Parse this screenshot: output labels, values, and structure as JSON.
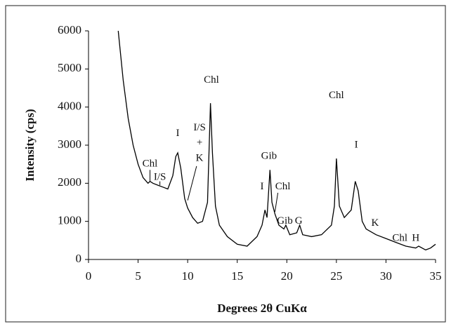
{
  "chart_data": {
    "type": "line",
    "x_label": "Degrees 2θ CuKα",
    "y_label": "Intensity (cps)",
    "xlim": [
      0,
      35
    ],
    "ylim": [
      0,
      6000
    ],
    "xticks": [
      0,
      5,
      10,
      15,
      20,
      25,
      30,
      35
    ],
    "yticks": [
      0,
      1000,
      2000,
      3000,
      4000,
      5000,
      6000
    ],
    "color": "#000000",
    "x": [
      3.0,
      3.5,
      4.0,
      4.5,
      5.0,
      5.5,
      6.0,
      6.2,
      6.5,
      7.0,
      7.5,
      8.0,
      8.5,
      8.8,
      9.0,
      9.3,
      9.7,
      10.0,
      10.5,
      11.0,
      11.5,
      12.0,
      12.3,
      12.5,
      12.8,
      13.2,
      14.0,
      15.0,
      16.0,
      17.0,
      17.5,
      17.8,
      18.0,
      18.3,
      18.5,
      18.8,
      19.2,
      19.7,
      19.9,
      20.3,
      21.0,
      21.3,
      21.6,
      22.5,
      23.5,
      24.5,
      24.8,
      25.0,
      25.3,
      25.8,
      26.5,
      26.9,
      27.2,
      27.6,
      28.0,
      29.0,
      30.0,
      31.0,
      32.0,
      33.0,
      33.3,
      34.0,
      34.5,
      35.0
    ],
    "values": [
      6000,
      4700,
      3700,
      3000,
      2500,
      2150,
      2000,
      2050,
      2000,
      1950,
      1900,
      1850,
      2200,
      2700,
      2800,
      2400,
      1600,
      1350,
      1100,
      950,
      1000,
      1500,
      4100,
      2800,
      1400,
      900,
      600,
      400,
      350,
      600,
      900,
      1300,
      1100,
      2350,
      1500,
      1200,
      900,
      800,
      900,
      650,
      700,
      900,
      650,
      600,
      650,
      900,
      1400,
      2650,
      1400,
      1100,
      1300,
      2050,
      1800,
      1000,
      800,
      650,
      550,
      450,
      350,
      300,
      350,
      250,
      300,
      400
    ],
    "annotations": [
      "Chl",
      "I/S",
      "I",
      "I/S",
      "+",
      "K",
      "Chl",
      "Gib",
      "I",
      "Chl",
      "Gib",
      "G",
      "Chl",
      "I",
      "K",
      "Chl",
      "H"
    ]
  }
}
